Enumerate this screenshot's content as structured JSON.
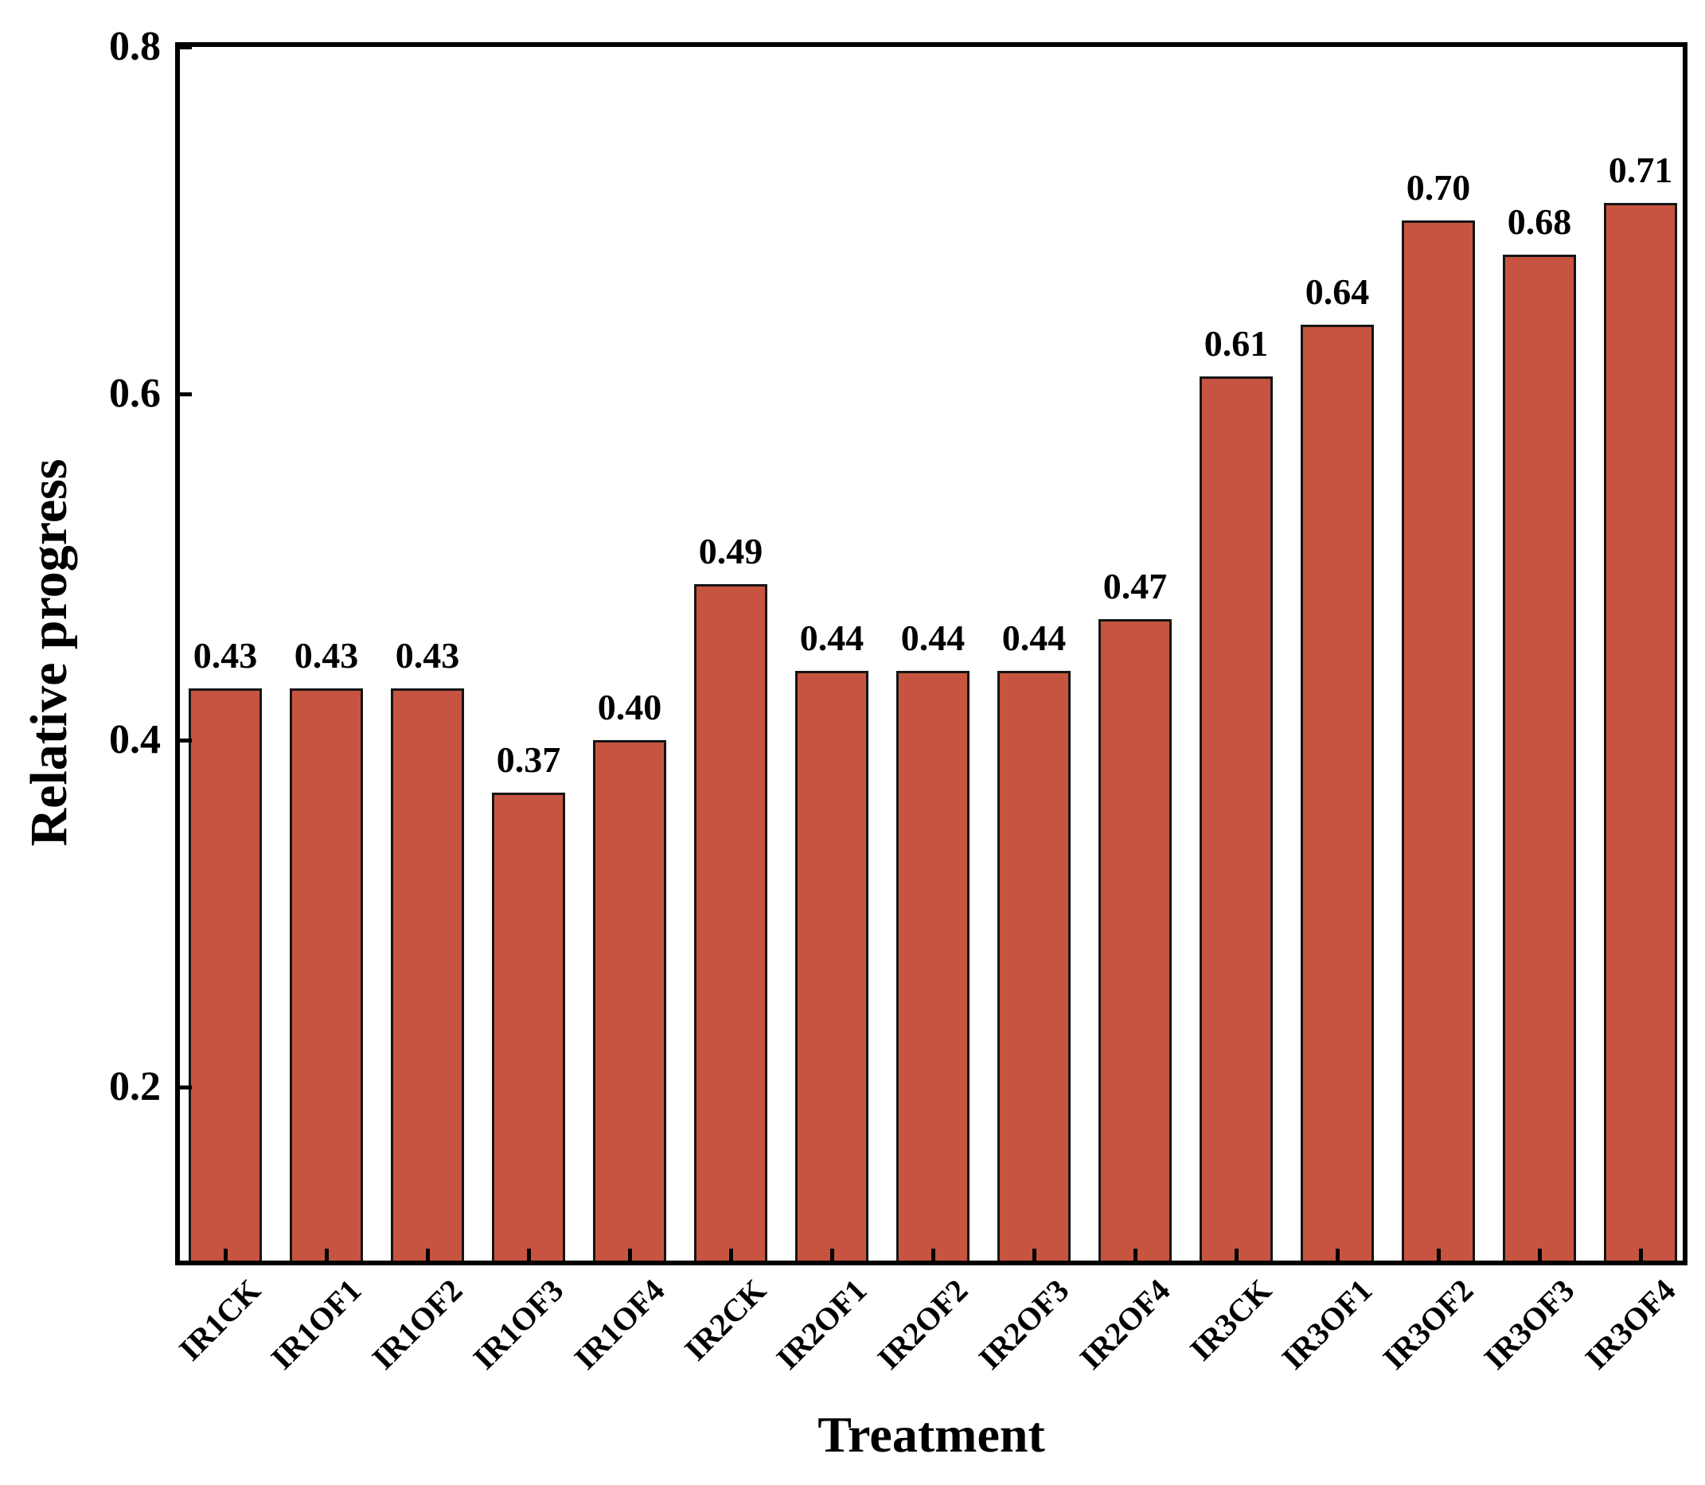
{
  "figure": {
    "y_axis_title": "Relative progress",
    "x_axis_title": "Treatment"
  },
  "chart_data": {
    "type": "bar",
    "title": "",
    "xlabel": "Treatment",
    "ylabel": "Relative progress",
    "categories": [
      "IR1CK",
      "IR1OF1",
      "IR1OF2",
      "IR1OF3",
      "IR1OF4",
      "IR2CK",
      "IR2OF1",
      "IR2OF2",
      "IR2OF3",
      "IR2OF4",
      "IR3CK",
      "IR3OF1",
      "IR3OF2",
      "IR3OF3",
      "IR3OF4"
    ],
    "values": [
      0.43,
      0.43,
      0.43,
      0.37,
      0.4,
      0.49,
      0.44,
      0.44,
      0.44,
      0.47,
      0.61,
      0.64,
      0.7,
      0.68,
      0.71
    ],
    "bar_labels": [
      "0.43",
      "0.43",
      "0.43",
      "0.37",
      "0.40",
      "0.49",
      "0.44",
      "0.44",
      "0.44",
      "0.47",
      "0.61",
      "0.64",
      "0.70",
      "0.68",
      "0.71"
    ],
    "ylim": [
      0.1,
      0.8
    ],
    "yticks": [
      0.2,
      0.4,
      0.6,
      0.8
    ],
    "ytick_labels": [
      "0.2",
      "0.4",
      "0.6",
      "0.8"
    ],
    "grid": "off",
    "legend": "none",
    "bar_color": "#C75440",
    "bar_border_color": "#151515",
    "axis_color": "#000000"
  }
}
